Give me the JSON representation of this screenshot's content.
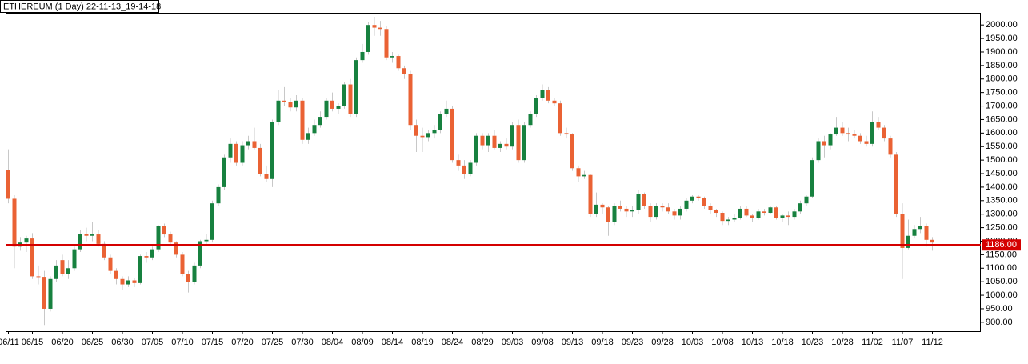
{
  "chart_data": {
    "type": "candlestick",
    "title": "ETHEREUM (1 Day) 22-11-13_19-14-18",
    "categories": [
      "06/11",
      null,
      null,
      null,
      "06/15",
      null,
      null,
      null,
      null,
      "06/20",
      null,
      null,
      null,
      null,
      "06/25",
      null,
      null,
      null,
      null,
      "06/30",
      null,
      null,
      null,
      null,
      "07/05",
      null,
      null,
      null,
      null,
      "07/10",
      null,
      null,
      null,
      null,
      "07/15",
      null,
      null,
      null,
      null,
      "07/20",
      null,
      null,
      null,
      null,
      "07/25",
      null,
      null,
      null,
      null,
      "07/30",
      null,
      null,
      null,
      null,
      "08/04",
      null,
      null,
      null,
      null,
      "08/09",
      null,
      null,
      null,
      null,
      "08/14",
      null,
      null,
      null,
      null,
      "08/19",
      null,
      null,
      null,
      null,
      "08/24",
      null,
      null,
      null,
      null,
      "08/29",
      null,
      null,
      null,
      null,
      "09/03",
      null,
      null,
      null,
      null,
      "09/08",
      null,
      null,
      null,
      null,
      "09/13",
      null,
      null,
      null,
      null,
      "09/18",
      null,
      null,
      null,
      null,
      "09/23",
      null,
      null,
      null,
      null,
      "09/28",
      null,
      null,
      null,
      null,
      "10/03",
      null,
      null,
      null,
      null,
      "10/08",
      null,
      null,
      null,
      null,
      "10/13",
      null,
      null,
      null,
      null,
      "10/18",
      null,
      null,
      null,
      null,
      "10/23",
      null,
      null,
      null,
      null,
      "10/28",
      null,
      null,
      null,
      null,
      "11/02",
      null,
      null,
      null,
      null,
      "11/07",
      null,
      null,
      null,
      null,
      "11/12"
    ],
    "open": [
      1463,
      1357,
      1180,
      1195,
      1210,
      1070,
      1068,
      950,
      1060,
      1130,
      1080,
      1100,
      1170,
      1228,
      1220,
      1225,
      1190,
      1140,
      1090,
      1060,
      1040,
      1055,
      1045,
      1145,
      1140,
      1170,
      1255,
      1225,
      1195,
      1150,
      1080,
      1050,
      1110,
      1200,
      1205,
      1340,
      1400,
      1510,
      1560,
      1490,
      1555,
      1570,
      1545,
      1450,
      1430,
      1640,
      1720,
      1715,
      1695,
      1720,
      1575,
      1600,
      1630,
      1660,
      1720,
      1690,
      1700,
      1780,
      1670,
      1870,
      1900,
      2000,
      1990,
      1985,
      1880,
      1885,
      1840,
      1820,
      1630,
      1590,
      1585,
      1600,
      1610,
      1670,
      1690,
      1500,
      1480,
      1450,
      1490,
      1590,
      1555,
      1590,
      1545,
      1560,
      1550,
      1630,
      1500,
      1630,
      1670,
      1730,
      1760,
      1720,
      1710,
      1600,
      1595,
      1470,
      1440,
      1445,
      1300,
      1335,
      1325,
      1270,
      1330,
      1320,
      1310,
      1315,
      1375,
      1330,
      1290,
      1330,
      1325,
      1310,
      1295,
      1320,
      1350,
      1365,
      1360,
      1330,
      1315,
      1305,
      1275,
      1280,
      1285,
      1320,
      1295,
      1285,
      1310,
      1305,
      1325,
      1285,
      1295,
      1290,
      1310,
      1340,
      1365,
      1500,
      1570,
      1555,
      1595,
      1620,
      1600,
      1595,
      1590,
      1570,
      1560,
      1640,
      1620,
      1580,
      1520,
      1300,
      1175,
      1220,
      1245,
      1255,
      1205
    ],
    "high": [
      1540,
      1370,
      1215,
      1220,
      1230,
      1110,
      1090,
      1070,
      1130,
      1150,
      1130,
      1180,
      1240,
      1250,
      1270,
      1240,
      1200,
      1150,
      1100,
      1070,
      1070,
      1065,
      1150,
      1160,
      1180,
      1260,
      1265,
      1235,
      1200,
      1160,
      1090,
      1120,
      1205,
      1225,
      1350,
      1410,
      1520,
      1580,
      1570,
      1570,
      1590,
      1620,
      1560,
      1480,
      1650,
      1760,
      1770,
      1730,
      1740,
      1730,
      1620,
      1650,
      1680,
      1730,
      1750,
      1710,
      1790,
      1800,
      1880,
      1930,
      2010,
      2030,
      2015,
      1995,
      1900,
      1890,
      1850,
      1830,
      1650,
      1620,
      1610,
      1630,
      1680,
      1720,
      1700,
      1520,
      1500,
      1500,
      1600,
      1600,
      1600,
      1610,
      1570,
      1580,
      1640,
      1650,
      1640,
      1680,
      1740,
      1780,
      1770,
      1730,
      1720,
      1620,
      1600,
      1480,
      1460,
      1450,
      1380,
      1340,
      1330,
      1340,
      1350,
      1330,
      1330,
      1390,
      1380,
      1340,
      1340,
      1340,
      1340,
      1320,
      1330,
      1360,
      1370,
      1370,
      1365,
      1340,
      1320,
      1310,
      1290,
      1300,
      1330,
      1330,
      1300,
      1320,
      1320,
      1330,
      1330,
      1300,
      1310,
      1320,
      1350,
      1370,
      1510,
      1580,
      1590,
      1600,
      1660,
      1640,
      1620,
      1610,
      1600,
      1590,
      1680,
      1660,
      1630,
      1590,
      1530,
      1340,
      1280,
      1260,
      1290,
      1265,
      1215
    ],
    "low": [
      1340,
      1100,
      1165,
      1160,
      1060,
      1040,
      890,
      940,
      1050,
      1070,
      1060,
      1090,
      1160,
      1200,
      1200,
      1180,
      1130,
      1080,
      1040,
      1020,
      1030,
      1030,
      1040,
      1120,
      1130,
      1160,
      1215,
      1185,
      1140,
      1070,
      1010,
      1040,
      1100,
      1190,
      1195,
      1330,
      1390,
      1490,
      1480,
      1480,
      1540,
      1540,
      1440,
      1420,
      1400,
      1630,
      1700,
      1680,
      1680,
      1560,
      1560,
      1590,
      1620,
      1650,
      1680,
      1670,
      1690,
      1660,
      1660,
      1860,
      1890,
      1960,
      1960,
      1870,
      1860,
      1830,
      1800,
      1610,
      1530,
      1530,
      1570,
      1580,
      1600,
      1660,
      1490,
      1460,
      1430,
      1440,
      1480,
      1540,
      1530,
      1540,
      1530,
      1540,
      1540,
      1490,
      1490,
      1620,
      1660,
      1720,
      1710,
      1700,
      1590,
      1580,
      1460,
      1420,
      1430,
      1290,
      1290,
      1300,
      1220,
      1260,
      1310,
      1290,
      1290,
      1300,
      1320,
      1270,
      1280,
      1310,
      1300,
      1280,
      1280,
      1310,
      1340,
      1350,
      1320,
      1300,
      1290,
      1260,
      1260,
      1270,
      1280,
      1290,
      1270,
      1280,
      1295,
      1300,
      1280,
      1270,
      1260,
      1280,
      1300,
      1330,
      1360,
      1490,
      1510,
      1540,
      1590,
      1590,
      1570,
      1580,
      1560,
      1550,
      1550,
      1610,
      1570,
      1510,
      1290,
      1060,
      1170,
      1210,
      1230,
      1180,
      1165
    ],
    "close": [
      1357,
      1180,
      1195,
      1210,
      1070,
      1068,
      950,
      1060,
      1110,
      1080,
      1100,
      1170,
      1228,
      1220,
      1225,
      1190,
      1140,
      1090,
      1060,
      1040,
      1055,
      1045,
      1145,
      1140,
      1170,
      1255,
      1225,
      1195,
      1150,
      1080,
      1050,
      1110,
      1200,
      1205,
      1340,
      1400,
      1510,
      1560,
      1490,
      1555,
      1570,
      1545,
      1450,
      1430,
      1640,
      1720,
      1715,
      1695,
      1720,
      1575,
      1600,
      1630,
      1660,
      1720,
      1690,
      1700,
      1780,
      1670,
      1870,
      1900,
      2000,
      1990,
      1985,
      1880,
      1885,
      1840,
      1820,
      1630,
      1590,
      1585,
      1600,
      1610,
      1670,
      1690,
      1500,
      1480,
      1450,
      1490,
      1590,
      1555,
      1590,
      1545,
      1560,
      1550,
      1630,
      1500,
      1630,
      1670,
      1730,
      1760,
      1720,
      1710,
      1600,
      1595,
      1470,
      1440,
      1445,
      1300,
      1335,
      1325,
      1270,
      1330,
      1320,
      1310,
      1315,
      1375,
      1330,
      1290,
      1330,
      1325,
      1310,
      1295,
      1320,
      1350,
      1365,
      1360,
      1330,
      1315,
      1305,
      1275,
      1280,
      1285,
      1320,
      1295,
      1285,
      1310,
      1305,
      1325,
      1285,
      1295,
      1290,
      1310,
      1340,
      1365,
      1500,
      1570,
      1555,
      1595,
      1620,
      1600,
      1595,
      1590,
      1570,
      1560,
      1640,
      1620,
      1580,
      1520,
      1300,
      1175,
      1220,
      1245,
      1255,
      1205,
      1195
    ],
    "up_color": "#17813f",
    "down_color": "#ea6234",
    "wick_color": "#c8c8c8",
    "price_line": {
      "value": 1186,
      "label": "1186.00",
      "color": "#d40000"
    },
    "ylim": [
      867,
      2042
    ],
    "yticks": [
      {
        "value": 900,
        "label": "900.00"
      },
      {
        "value": 950,
        "label": "950.00"
      },
      {
        "value": 1000,
        "label": "1000.00"
      },
      {
        "value": 1050,
        "label": "1050.00"
      },
      {
        "value": 1100,
        "label": "1100.00"
      },
      {
        "value": 1150,
        "label": "1150.00"
      },
      {
        "value": 1200,
        "label": "1200.00"
      },
      {
        "value": 1250,
        "label": "1250.00"
      },
      {
        "value": 1300,
        "label": "1300.00"
      },
      {
        "value": 1350,
        "label": "1350.00"
      },
      {
        "value": 1400,
        "label": "1400.00"
      },
      {
        "value": 1450,
        "label": "1450.00"
      },
      {
        "value": 1500,
        "label": "1500.00"
      },
      {
        "value": 1550,
        "label": "1550.00"
      },
      {
        "value": 1600,
        "label": "1600.00"
      },
      {
        "value": 1650,
        "label": "1650.00"
      },
      {
        "value": 1700,
        "label": "1700.00"
      },
      {
        "value": 1750,
        "label": "1750.00"
      },
      {
        "value": 1800,
        "label": "1800.00"
      },
      {
        "value": 1850,
        "label": "1850.00"
      },
      {
        "value": 1900,
        "label": "1900.00"
      },
      {
        "value": 1950,
        "label": "1950.00"
      },
      {
        "value": 2000,
        "label": "2000.00"
      }
    ]
  }
}
